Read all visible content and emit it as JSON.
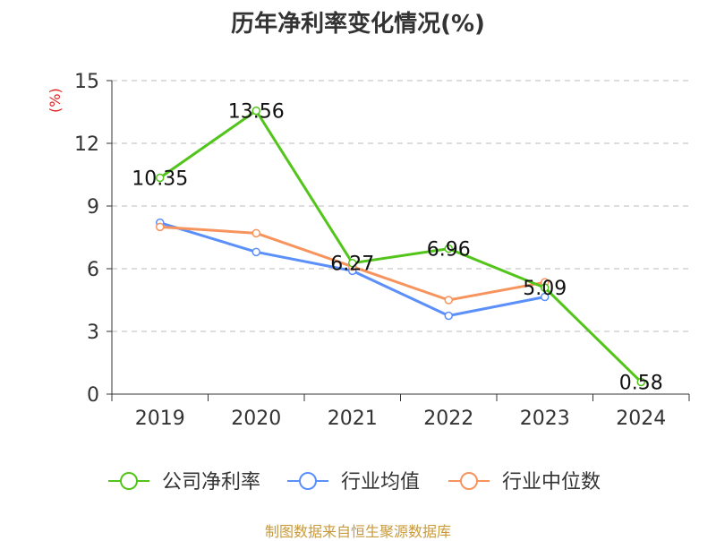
{
  "chart_data": {
    "type": "line",
    "title": "历年净利率变化情况(%)",
    "ylabel": "(%)",
    "categories": [
      "2019",
      "2020",
      "2021",
      "2022",
      "2023",
      "2024"
    ],
    "ylim": [
      0,
      15
    ],
    "yticks": [
      "0",
      "3",
      "6",
      "9",
      "12",
      "15"
    ],
    "grid": true,
    "legend_position": "bottom",
    "series": [
      {
        "name": "公司净利率",
        "values": [
          10.35,
          13.56,
          6.27,
          6.96,
          5.09,
          0.58
        ],
        "labels": [
          "10.35",
          "13.56",
          "6.27",
          "6.96",
          "5.09",
          "0.58"
        ],
        "color": "#52c41a"
      },
      {
        "name": "行业均值",
        "values": [
          8.2,
          6.8,
          5.9,
          3.75,
          4.65,
          null
        ],
        "color": "#5b8ff9"
      },
      {
        "name": "行业中位数",
        "values": [
          8.0,
          7.7,
          6.1,
          4.5,
          5.35,
          null
        ],
        "color": "#f7945e"
      }
    ]
  },
  "footer": {
    "source": "制图数据来自恒生聚源数据库"
  }
}
